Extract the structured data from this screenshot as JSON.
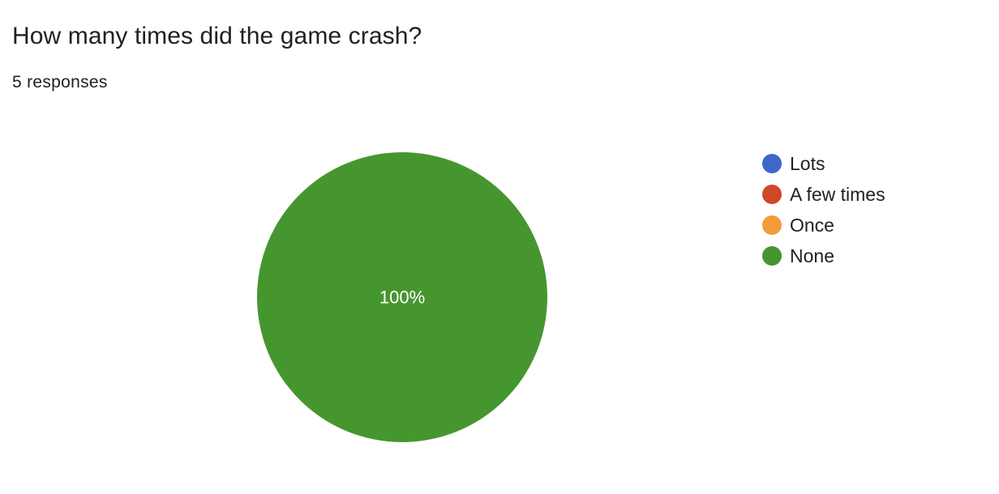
{
  "question": {
    "title": "How many times did the game crash?",
    "responses": "5 responses"
  },
  "chart_data": {
    "type": "pie",
    "categories": [
      "Lots",
      "A few times",
      "Once",
      "None"
    ],
    "values": [
      0,
      0,
      0,
      5
    ],
    "colors": [
      "#3f67c9",
      "#d0482a",
      "#f29b38",
      "#46962f"
    ],
    "slice_labels": [
      "",
      "",
      "",
      "100%"
    ],
    "label_color": "#ffffff",
    "legend_position": "right"
  }
}
